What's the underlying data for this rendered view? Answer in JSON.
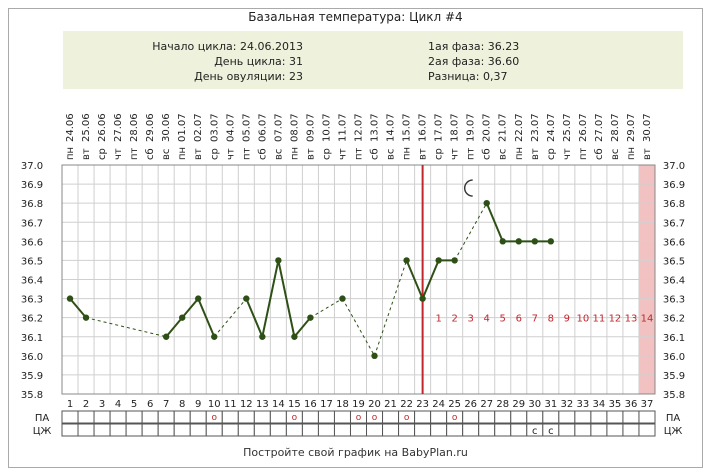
{
  "title": "Базальная температура: Цикл #4",
  "info": {
    "left": [
      {
        "label": "Начало цикла:",
        "value": "24.06.2013"
      },
      {
        "label": "День цикла:",
        "value": "31"
      },
      {
        "label": "День овуляции:",
        "value": "23"
      }
    ],
    "right": [
      {
        "label": "1ая фаза:",
        "value": "36.23"
      },
      {
        "label": "2ая фаза:",
        "value": "36.60"
      },
      {
        "label": "Разница:",
        "value": "0,37"
      }
    ]
  },
  "footer": "Постройте свой график на BabyPlan.ru",
  "colors": {
    "line": "#2e5016",
    "point": "#2e5016",
    "ovulation": "#c0272d",
    "phase2_numbers": "#c0272d",
    "end_band": "#f2c2c2",
    "info_bg": "#eef2dc",
    "grid": "#cfcfcf"
  },
  "chart_data": {
    "type": "line",
    "title": "Базальная температура: Цикл #4",
    "ylim": [
      35.8,
      37.0
    ],
    "yticks": [
      "35.8",
      "35.9",
      "36.0",
      "36.1",
      "36.2",
      "36.3",
      "36.4",
      "36.5",
      "36.6",
      "36.7",
      "36.8",
      "36.9",
      "37.0"
    ],
    "days": [
      1,
      2,
      3,
      4,
      5,
      6,
      7,
      8,
      9,
      10,
      11,
      12,
      13,
      14,
      15,
      16,
      17,
      18,
      19,
      20,
      21,
      22,
      23,
      24,
      25,
      26,
      27,
      28,
      29,
      30,
      31,
      32,
      33,
      34,
      35,
      36,
      37
    ],
    "dates": [
      "24.06",
      "25.06",
      "26.06",
      "27.06",
      "28.06",
      "29.06",
      "30.06",
      "01.07",
      "02.07",
      "03.07",
      "04.07",
      "05.07",
      "06.07",
      "07.07",
      "08.07",
      "09.07",
      "10.07",
      "11.07",
      "12.07",
      "13.07",
      "14.07",
      "15.07",
      "16.07",
      "17.07",
      "18.07",
      "19.07",
      "20.07",
      "21.07",
      "22.07",
      "23.07",
      "24.07",
      "25.07",
      "26.07",
      "27.07",
      "28.07",
      "29.07",
      "30.07"
    ],
    "weekdays": [
      "пн",
      "вт",
      "ср",
      "чт",
      "пт",
      "сб",
      "вс",
      "пн",
      "вт",
      "ср",
      "чт",
      "пт",
      "сб",
      "вс",
      "пн",
      "вт",
      "ср",
      "чт",
      "пт",
      "сб",
      "вс",
      "пн",
      "вт",
      "ср",
      "чт",
      "пт",
      "сб",
      "вс",
      "пн",
      "вт",
      "ср",
      "чт",
      "пт",
      "сб",
      "вс",
      "пн",
      "вт"
    ],
    "temperatures": [
      36.3,
      36.2,
      null,
      null,
      null,
      null,
      36.1,
      36.2,
      36.3,
      36.1,
      null,
      36.3,
      36.1,
      36.5,
      36.1,
      36.2,
      null,
      36.3,
      null,
      36.0,
      null,
      36.5,
      36.3,
      36.5,
      36.5,
      null,
      36.8,
      36.6,
      36.6,
      36.6,
      36.6,
      null,
      null,
      null,
      null,
      null,
      null
    ],
    "ovulation_day": 23,
    "phase2_day_numbers": [
      "1",
      "2",
      "3",
      "4",
      "5",
      "6",
      "7",
      "8",
      "9",
      "10",
      "11",
      "12",
      "13",
      "14"
    ],
    "phase2_start_day": 24,
    "end_band_day": 37,
    "moon_day": 26,
    "moon_temp": 36.9,
    "pa_label": "ПА",
    "czh_label": "ЦЖ",
    "pa_mark": "о",
    "pa_days": [
      10,
      15,
      19,
      20,
      22,
      25
    ],
    "czh_mark": "с",
    "czh_days": [
      30,
      31
    ]
  }
}
